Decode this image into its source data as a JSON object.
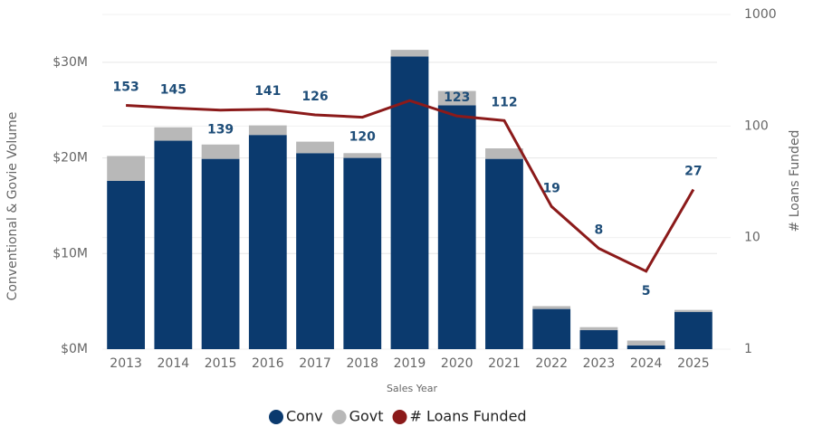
{
  "chart_data": {
    "type": "bar_line",
    "x_label": "Sales Year",
    "y_label": "Conventional & Govie Volume",
    "y2_label": "# Loans Funded",
    "categories": [
      "2013",
      "2014",
      "2015",
      "2016",
      "2017",
      "2018",
      "2019",
      "2020",
      "2021",
      "2022",
      "2023",
      "2024",
      "2025"
    ],
    "series": [
      {
        "name": "Conv",
        "type": "bar",
        "color": "#0b3a6e",
        "values": [
          17.6,
          21.8,
          19.9,
          22.4,
          20.5,
          20.0,
          30.6,
          25.5,
          19.9,
          4.2,
          2.0,
          0.4,
          3.9
        ]
      },
      {
        "name": "Govt",
        "type": "bar",
        "color": "#b8b8b8",
        "values": [
          2.6,
          1.4,
          1.5,
          1.0,
          1.2,
          0.5,
          0.7,
          1.5,
          1.1,
          0.3,
          0.3,
          0.5,
          0.2
        ]
      },
      {
        "name": "# Loans Funded",
        "type": "line",
        "axis": "y2",
        "color": "#8b1a1a",
        "values": [
          153,
          145,
          139,
          141,
          126,
          120,
          169,
          123,
          112,
          19,
          8,
          5,
          27
        ],
        "value_labels": [
          "153",
          "145",
          "139",
          "141",
          "126",
          "120",
          null,
          "123",
          "112",
          "19",
          "8",
          "5",
          "27"
        ]
      }
    ],
    "ylim": [
      0,
      35
    ],
    "yticks": [
      {
        "value": 0,
        "label": "$0M"
      },
      {
        "value": 10,
        "label": "$10M"
      },
      {
        "value": 20,
        "label": "$20M"
      },
      {
        "value": 30,
        "label": "$30M"
      }
    ],
    "y2lim": [
      1,
      1000
    ],
    "y2ticks": [
      1,
      10,
      100,
      1000
    ],
    "y2_log": true,
    "grid": true,
    "legend": "bottom"
  }
}
